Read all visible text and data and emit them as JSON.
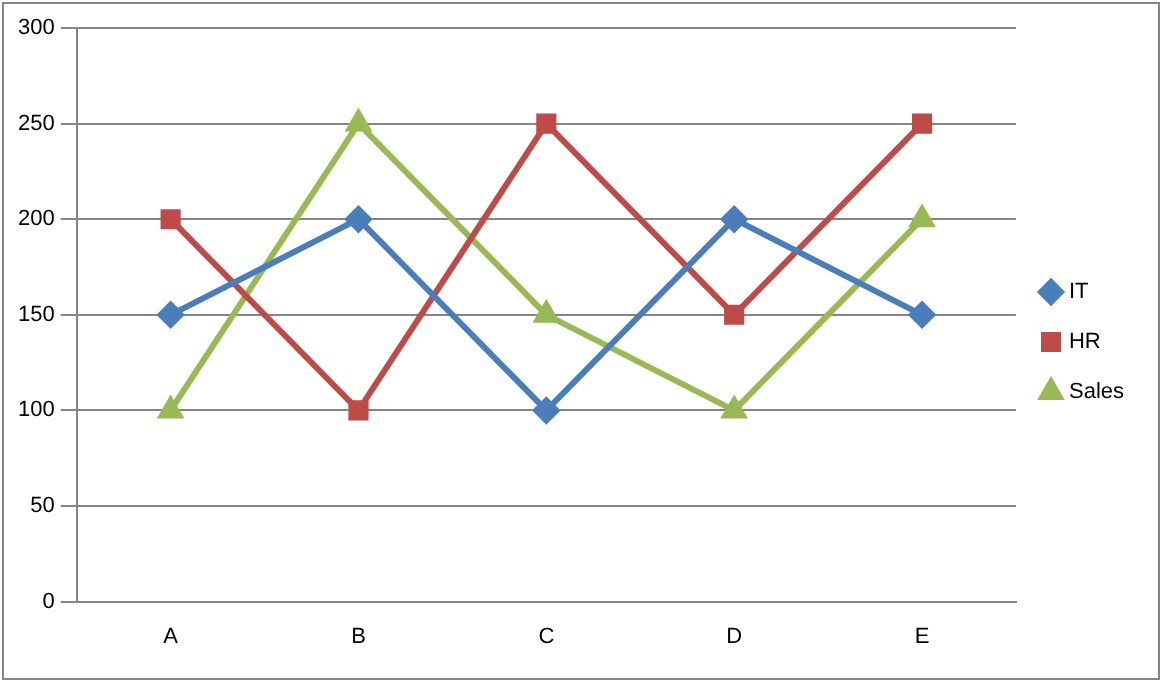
{
  "chart_data": {
    "type": "line",
    "categories": [
      "A",
      "B",
      "C",
      "D",
      "E"
    ],
    "series": [
      {
        "name": "IT",
        "color": "#4a7ebb",
        "marker": "diamond",
        "values": [
          150,
          200,
          100,
          200,
          150
        ]
      },
      {
        "name": "HR",
        "color": "#be4b48",
        "marker": "square",
        "values": [
          200,
          100,
          250,
          150,
          250
        ]
      },
      {
        "name": "Sales",
        "color": "#98b954",
        "marker": "triangle",
        "values": [
          100,
          250,
          150,
          100,
          200
        ]
      }
    ],
    "ylim": [
      0,
      300
    ],
    "yticks": [
      0,
      50,
      100,
      150,
      200,
      250,
      300
    ],
    "grid": "y",
    "legend": "right",
    "line_style": "solid"
  }
}
